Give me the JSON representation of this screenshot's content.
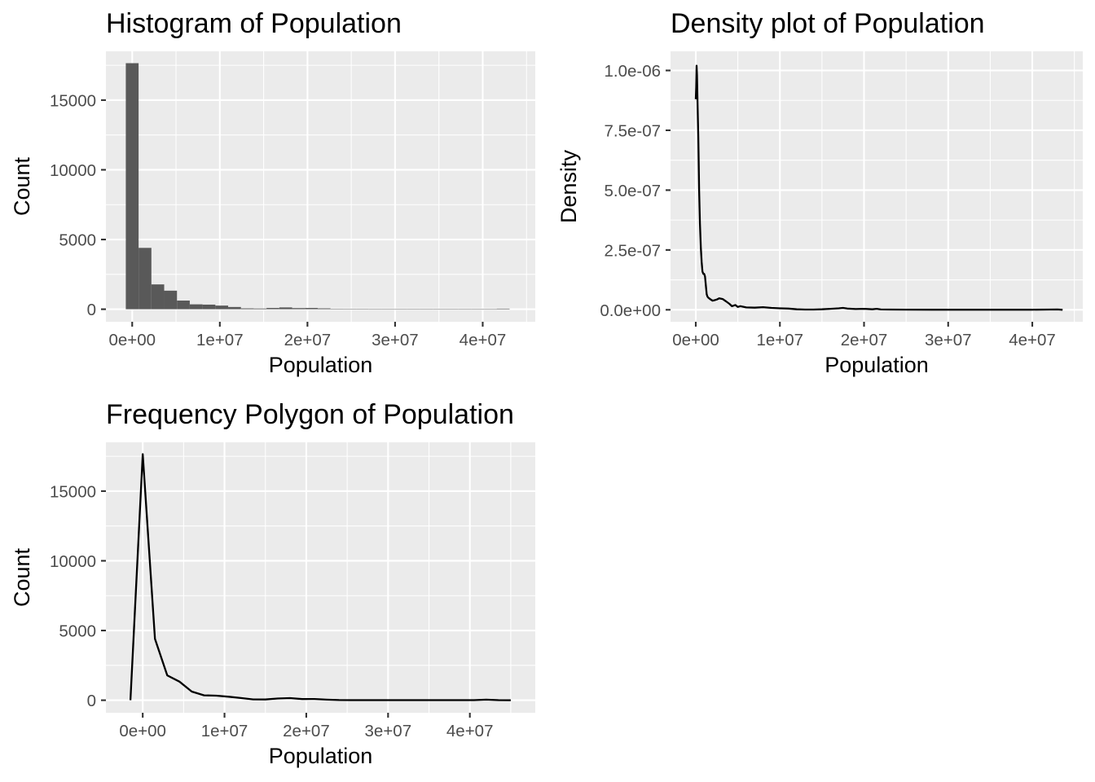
{
  "chart_data": [
    {
      "id": "histogram",
      "type": "bar",
      "title": "Histogram of Population",
      "xlabel": "Population",
      "ylabel": "Count",
      "xlim": [
        -3000000,
        46000000
      ],
      "ylim": [
        -900,
        18500
      ],
      "x_ticks": [
        0,
        10000000,
        20000000,
        30000000,
        40000000
      ],
      "x_tick_labels": [
        "0e+00",
        "1e+07",
        "2e+07",
        "3e+07",
        "4e+07"
      ],
      "y_ticks": [
        0,
        5000,
        10000,
        15000
      ],
      "y_tick_labels": [
        "0",
        "5000",
        "10000",
        "15000"
      ],
      "grid": true,
      "bin_width": 1460000,
      "bins": [
        {
          "x_start": -730000,
          "x_end": 730000,
          "count": 17650
        },
        {
          "x_start": 730000,
          "x_end": 2190000,
          "count": 4400
        },
        {
          "x_start": 2190000,
          "x_end": 3650000,
          "count": 1780
        },
        {
          "x_start": 3650000,
          "x_end": 5110000,
          "count": 1330
        },
        {
          "x_start": 5110000,
          "x_end": 6570000,
          "count": 620
        },
        {
          "x_start": 6570000,
          "x_end": 8030000,
          "count": 350
        },
        {
          "x_start": 8030000,
          "x_end": 9490000,
          "count": 330
        },
        {
          "x_start": 9490000,
          "x_end": 10950000,
          "count": 260
        },
        {
          "x_start": 10950000,
          "x_end": 12410000,
          "count": 160
        },
        {
          "x_start": 12410000,
          "x_end": 13870000,
          "count": 60
        },
        {
          "x_start": 13870000,
          "x_end": 15330000,
          "count": 50
        },
        {
          "x_start": 15330000,
          "x_end": 16790000,
          "count": 90
        },
        {
          "x_start": 16790000,
          "x_end": 18250000,
          "count": 130
        },
        {
          "x_start": 18250000,
          "x_end": 19710000,
          "count": 80
        },
        {
          "x_start": 19710000,
          "x_end": 21170000,
          "count": 90
        },
        {
          "x_start": 21170000,
          "x_end": 22630000,
          "count": 60
        },
        {
          "x_start": 22630000,
          "x_end": 24090000,
          "count": 30
        },
        {
          "x_start": 24090000,
          "x_end": 25550000,
          "count": 5
        },
        {
          "x_start": 25550000,
          "x_end": 27010000,
          "count": 5
        },
        {
          "x_start": 27010000,
          "x_end": 28470000,
          "count": 3
        },
        {
          "x_start": 28470000,
          "x_end": 29930000,
          "count": 3
        },
        {
          "x_start": 29930000,
          "x_end": 31390000,
          "count": 3
        },
        {
          "x_start": 31390000,
          "x_end": 32850000,
          "count": 3
        },
        {
          "x_start": 32850000,
          "x_end": 34310000,
          "count": 3
        },
        {
          "x_start": 34310000,
          "x_end": 35770000,
          "count": 3
        },
        {
          "x_start": 35770000,
          "x_end": 37230000,
          "count": 3
        },
        {
          "x_start": 37230000,
          "x_end": 38690000,
          "count": 3
        },
        {
          "x_start": 38690000,
          "x_end": 40150000,
          "count": 3
        },
        {
          "x_start": 40150000,
          "x_end": 41610000,
          "count": 3
        },
        {
          "x_start": 41610000,
          "x_end": 43070000,
          "count": 40
        }
      ]
    },
    {
      "id": "density",
      "type": "line",
      "title": "Density plot of Population",
      "xlabel": "Population",
      "ylabel": "Density",
      "xlim": [
        -3000000,
        46000000
      ],
      "ylim": [
        -5e-08,
        1.08e-06
      ],
      "x_ticks": [
        0,
        10000000,
        20000000,
        30000000,
        40000000
      ],
      "x_tick_labels": [
        "0e+00",
        "1e+07",
        "2e+07",
        "3e+07",
        "4e+07"
      ],
      "y_ticks": [
        0,
        2.5e-07,
        5e-07,
        7.5e-07,
        1e-06
      ],
      "y_tick_labels": [
        "0.0e+00",
        "2.5e-07",
        "5.0e-07",
        "7.5e-07",
        "1.0e-06"
      ],
      "grid": true,
      "x": [
        0,
        50000,
        100000,
        150000,
        200000,
        300000,
        400000,
        500000,
        600000,
        700000,
        800000,
        900000,
        1000000,
        1100000,
        1200000,
        1300000,
        1400000,
        1500000,
        1700000,
        2000000,
        2200000,
        2500000,
        2800000,
        3200000,
        3600000,
        4000000,
        4300000,
        4700000,
        5000000,
        5300000,
        6000000,
        7000000,
        8000000,
        9000000,
        10000000,
        11000000,
        12000000,
        13000000,
        14000000,
        15000000,
        16000000,
        17000000,
        17500000,
        18000000,
        19000000,
        20000000,
        21000000,
        21500000,
        22000000,
        23000000,
        25000000,
        28000000,
        30000000,
        35000000,
        40000000,
        42000000,
        43000000,
        43600000
      ],
      "y": [
        8.8e-07,
        9.3e-07,
        1.02e-06,
        9.8e-07,
        8.9e-07,
        7.2e-07,
        5e-07,
        3.6e-07,
        2.6e-07,
        2e-07,
        1.6e-07,
        1.5e-07,
        1.5e-07,
        1.4e-07,
        1e-07,
        6.5e-08,
        5.5e-08,
        5e-08,
        4.5e-08,
        3.8e-08,
        4e-08,
        4.3e-08,
        4.8e-08,
        4.5e-08,
        3.5e-08,
        2.5e-08,
        1.5e-08,
        2e-08,
        1.2e-08,
        1.5e-08,
        1e-08,
        9e-09,
        1.1e-08,
        8e-09,
        6e-09,
        5e-09,
        2e-09,
        1e-09,
        1e-09,
        2e-09,
        4e-09,
        6e-09,
        8e-09,
        5e-09,
        3e-09,
        4e-09,
        2e-09,
        4e-09,
        1.5e-09,
        1e-09,
        6e-10,
        5e-10,
        5e-10,
        5e-10,
        5e-10,
        1e-09,
        1.5e-09,
        0
      ]
    },
    {
      "id": "freqpoly",
      "type": "line",
      "title": "Frequency Polygon of Population",
      "xlabel": "Population",
      "ylabel": "Count",
      "xlim": [
        -4500000,
        48000000
      ],
      "ylim": [
        -900,
        18500
      ],
      "x_ticks": [
        0,
        10000000,
        20000000,
        30000000,
        40000000
      ],
      "x_tick_labels": [
        "0e+00",
        "1e+07",
        "2e+07",
        "3e+07",
        "4e+07"
      ],
      "y_ticks": [
        0,
        5000,
        10000,
        15000
      ],
      "y_tick_labels": [
        "0",
        "5000",
        "10000",
        "15000"
      ],
      "grid": true,
      "x": [
        -1500000,
        0,
        1500000,
        3000000,
        4500000,
        6000000,
        7500000,
        9000000,
        10500000,
        12000000,
        13500000,
        15000000,
        16500000,
        18000000,
        19500000,
        21000000,
        22500000,
        24000000,
        25500000,
        27000000,
        28500000,
        30000000,
        31500000,
        33000000,
        34500000,
        36000000,
        37500000,
        39000000,
        40500000,
        42000000,
        43500000,
        45000000
      ],
      "y": [
        0,
        17650,
        4400,
        1780,
        1330,
        620,
        350,
        330,
        250,
        160,
        60,
        50,
        120,
        150,
        80,
        90,
        40,
        10,
        5,
        5,
        3,
        3,
        3,
        3,
        3,
        3,
        3,
        3,
        3,
        40,
        5,
        0
      ]
    }
  ]
}
